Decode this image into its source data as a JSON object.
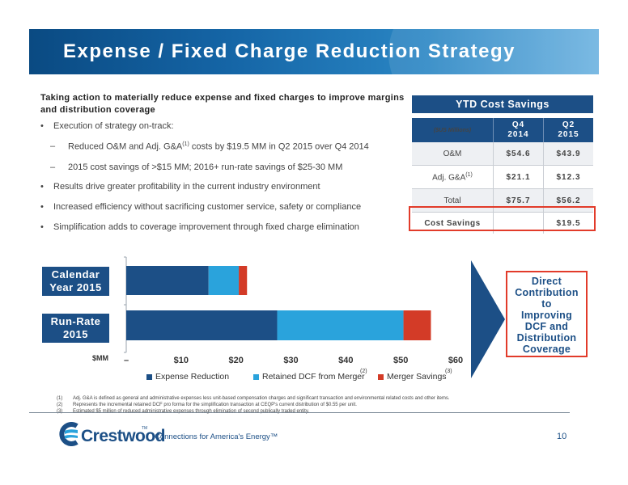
{
  "title": "Expense / Fixed Charge Reduction Strategy",
  "intro": "Taking action to materially reduce expense and fixed charges to improve margins and distribution coverage",
  "bullets": {
    "b1": "Execution of strategy on-track:",
    "b1a_pre": "Reduced O&M and Adj. G&A",
    "b1a_sup": "(1)",
    "b1a_post": " costs by $19.5 MM in Q2 2015 over Q4 2014",
    "b1b": "2015 cost savings of >$15 MM; 2016+ run-rate savings of $25-30 MM",
    "b2": "Results drive greater profitability in the current industry environment",
    "b3": "Increased efficiency without sacrificing customer service, safety or compliance",
    "b4": "Simplification adds to coverage improvement through fixed charge elimination",
    "bullet_mark": "•",
    "dash_mark": "–"
  },
  "ytd_table": {
    "title": "YTD Cost Savings",
    "header": {
      "label": "($US Millions)",
      "col1_l1": "Q4",
      "col1_l2": "2014",
      "col2_l1": "Q2",
      "col2_l2": "2015"
    },
    "rows": [
      {
        "label": "O&M",
        "sup": "",
        "q4": "$54.6",
        "q2": "$43.9"
      },
      {
        "label": "Adj. G&A",
        "sup": "(1)",
        "q4": "$21.1",
        "q2": "$12.3"
      },
      {
        "label": "Total",
        "sup": "",
        "q4": "$75.7",
        "q2": "$56.2"
      }
    ],
    "savings": {
      "label": "Cost Savings",
      "q4": "",
      "q2": "$19.5"
    }
  },
  "labels": {
    "calendar": [
      "Calendar",
      "Year 2015"
    ],
    "runrate": [
      "Run-Rate",
      "2015"
    ],
    "axis_unit": "$MM"
  },
  "direct_box": [
    "Direct",
    "Contribution",
    "to",
    "Improving",
    "DCF and",
    "Distribution",
    "Coverage"
  ],
  "colors": {
    "expense": "#1c4f86",
    "retained": "#2aa3dc",
    "merger": "#d33b27",
    "accent_red": "#e23b2a"
  },
  "chart_data": {
    "type": "bar",
    "orientation": "horizontal",
    "stacked": true,
    "categories": [
      "Calendar Year 2015",
      "Run-Rate 2015"
    ],
    "series": [
      {
        "name": "Expense Reduction",
        "values": [
          15,
          27.5
        ]
      },
      {
        "name": "Retained DCF from Merger",
        "values": [
          5.5,
          23
        ]
      },
      {
        "name": "Merger Savings",
        "values": [
          1.5,
          5
        ]
      }
    ],
    "x_ticks": [
      "–",
      "$10",
      "$20",
      "$30",
      "$40",
      "$50",
      "$60"
    ],
    "xlim": [
      0,
      60
    ],
    "xlabel": "$MM",
    "legend": "bottom",
    "legend_refs": [
      "",
      "(2)",
      "(3)"
    ]
  },
  "footnotes": [
    {
      "n": "(1)",
      "t": "Adj. G&A is defined as general and administrative expenses less unit-based compensation charges and significant transaction and environmental related costs and other items."
    },
    {
      "n": "(2)",
      "t": "Represents the incremental retained DCF pro forma for the simplification transaction at CEQP's current distribution of $0.55 per unit."
    },
    {
      "n": "(3)",
      "t": "Estimated $5 million of reduced administrative expenses through elimination of second publically traded entity."
    }
  ],
  "footer": {
    "brand": "Crestwood",
    "tm": "TM",
    "tagline": "Connections for America's Energy™",
    "page": "10"
  }
}
